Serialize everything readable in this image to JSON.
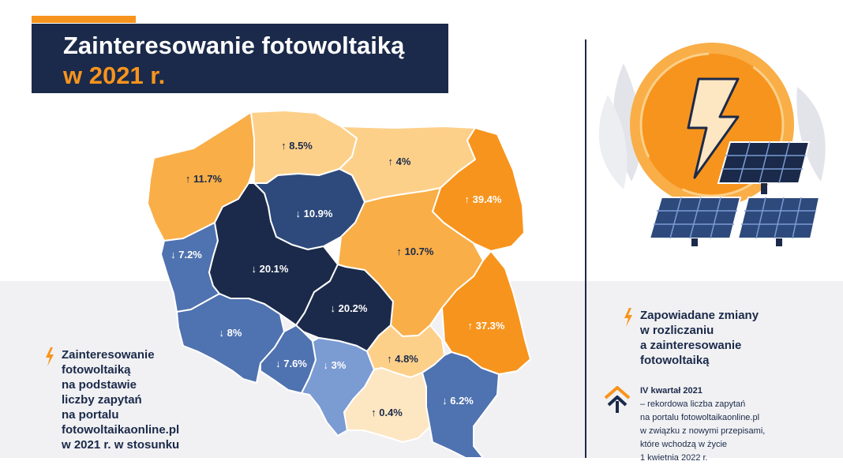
{
  "title": {
    "line1": "Zainteresowanie fotowoltaiką",
    "line2": "w 2021 r."
  },
  "colors": {
    "navy": "#1b2a4a",
    "orange": "#f7941d",
    "dark_navy_region": "#1b2a4a",
    "blue_region": "#2e4a7c",
    "mid_blue_region": "#4f72b0",
    "light_blue_region": "#7b9bd3",
    "dark_orange_region": "#f7941d",
    "mid_orange_region": "#f9ae47",
    "light_orange_region": "#fdd08a",
    "pale_orange_region": "#fde6c2"
  },
  "map": {
    "regions": [
      {
        "id": "zachodniopomorskie",
        "label": "11.7%",
        "direction": "up"
      },
      {
        "id": "pomorskie",
        "label": "8.5%",
        "direction": "up"
      },
      {
        "id": "warminsko-mazurskie",
        "label": "4%",
        "direction": "up"
      },
      {
        "id": "podlaskie",
        "label": "39.4%",
        "direction": "up"
      },
      {
        "id": "kujawsko-pomorskie",
        "label": "10.9%",
        "direction": "down"
      },
      {
        "id": "lubuskie",
        "label": "7.2%",
        "direction": "down"
      },
      {
        "id": "wielkopolskie",
        "label": "20.1%",
        "direction": "down"
      },
      {
        "id": "mazowieckie",
        "label": "10.7%",
        "direction": "up"
      },
      {
        "id": "lodzkie",
        "label": "20.2%",
        "direction": "down"
      },
      {
        "id": "lubelskie",
        "label": "37.3%",
        "direction": "up"
      },
      {
        "id": "dolnoslaskie",
        "label": "8%",
        "direction": "down"
      },
      {
        "id": "opolskie",
        "label": "7.6%",
        "direction": "down"
      },
      {
        "id": "slaskie",
        "label": "3%",
        "direction": "down"
      },
      {
        "id": "swietokrzyskie",
        "label": "4.8%",
        "direction": "up"
      },
      {
        "id": "malopolskie",
        "label": "0.4%",
        "direction": "up"
      },
      {
        "id": "podkarpackie",
        "label": "6.2%",
        "direction": "down"
      }
    ]
  },
  "left_note": {
    "lines": [
      "Zainteresowanie",
      "fotowoltaiką",
      "na podstawie",
      "liczby zapytań",
      "na portalu",
      "fotowoltaikaonline.pl",
      "w 2021 r. w stosunku"
    ]
  },
  "right_heading": {
    "lines": [
      "Zapowiadane zmiany",
      "w rozliczaniu",
      "a zainteresowanie",
      "fotowoltaiką"
    ]
  },
  "right_note": {
    "quarter": "IV kwartał 2021",
    "lines": [
      "– rekordowa liczba zapytań",
      "na portalu fotowoltaikaonline.pl",
      "w związku z nowymi przepisami,",
      "które wchodzą w życie",
      "1 kwietnia 2022 r."
    ]
  },
  "icons": {
    "bolt": "lightning-bolt-icon",
    "quarter": "double-chevron-up-icon",
    "illustration": "sun-solar-panels-illustration"
  }
}
